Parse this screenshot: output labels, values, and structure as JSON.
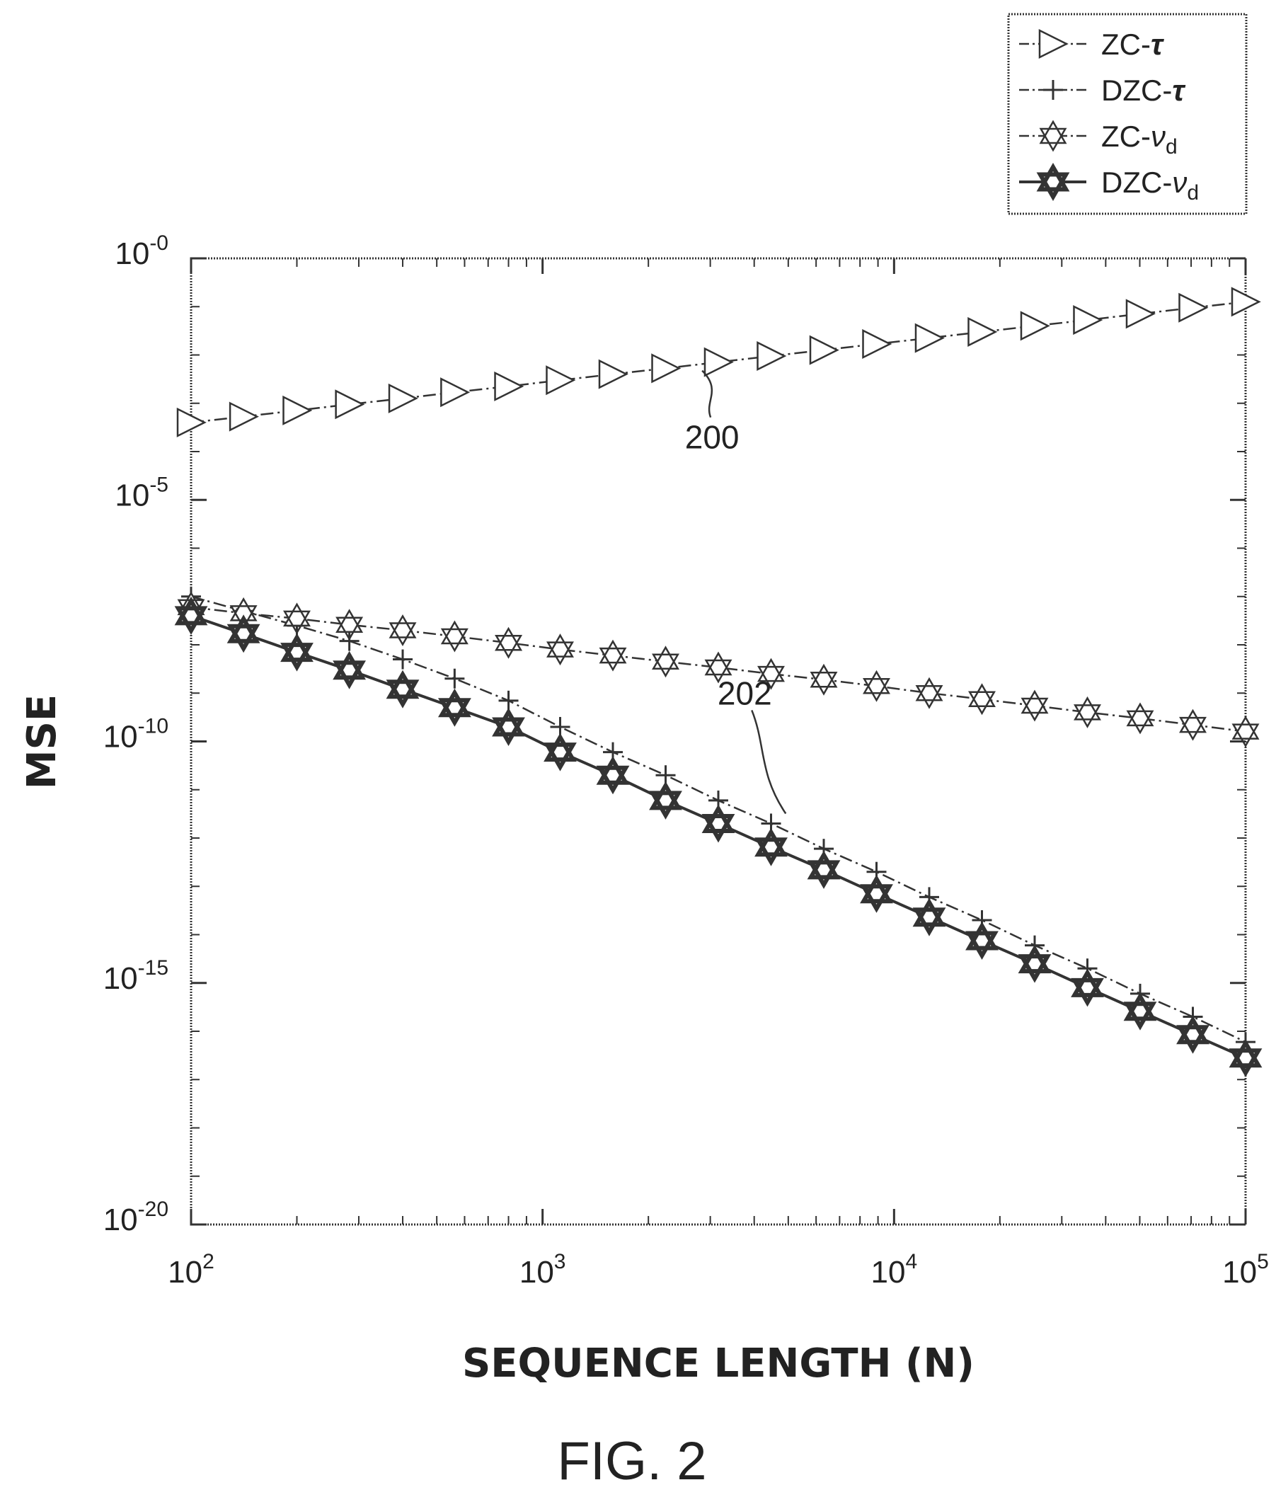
{
  "figure": {
    "caption": "FIG. 2"
  },
  "chart_data": {
    "type": "line",
    "xlabel": "SEQUENCE LENGTH (N)",
    "ylabel": "MSE",
    "xscale": "log",
    "yscale": "log",
    "xlim": [
      100,
      100000
    ],
    "ylim": [
      1e-20,
      1
    ],
    "x_ticks": [
      {
        "base": "10",
        "exp": "2"
      },
      {
        "base": "10",
        "exp": "3"
      },
      {
        "base": "10",
        "exp": "4"
      },
      {
        "base": "10",
        "exp": "5"
      }
    ],
    "y_ticks": [
      {
        "base": "10",
        "exp": "-0"
      },
      {
        "base": "10",
        "exp": "-5"
      },
      {
        "base": "10",
        "exp": "-10"
      },
      {
        "base": "10",
        "exp": "-15"
      },
      {
        "base": "10",
        "exp": "-20"
      }
    ],
    "grid": false,
    "legend_position": "top-right",
    "x": [
      100,
      141,
      200,
      282,
      400,
      562,
      800,
      1122,
      1585,
      2239,
      3162,
      4467,
      6310,
      8913,
      12589,
      17783,
      25119,
      35481,
      50119,
      70795,
      100000
    ],
    "series": [
      {
        "name": "ZC-τ",
        "marker": "triangle-right",
        "line": "dash-dot",
        "y": [
          0.0004,
          0.00053,
          0.00071,
          0.00095,
          0.00126,
          0.00169,
          0.00224,
          0.003,
          0.004,
          0.0053,
          0.0071,
          0.0095,
          0.0126,
          0.0169,
          0.0224,
          0.03,
          0.04,
          0.053,
          0.071,
          0.095,
          0.126
        ]
      },
      {
        "name": "DZC-τ",
        "marker": "plus",
        "line": "dash-dot",
        "y": [
          1e-07,
          5e-08,
          2.5e-08,
          1.2e-08,
          5e-09,
          2e-09,
          7e-10,
          2e-10,
          6e-11,
          2e-11,
          6e-12,
          2e-12,
          6e-13,
          2e-13,
          6e-14,
          2e-14,
          6e-15,
          2e-15,
          6e-16,
          2e-16,
          6e-17
        ]
      },
      {
        "name": "ZC-ν_d",
        "marker": "star6-open",
        "line": "dash-dot",
        "y": [
          6e-08,
          4.5e-08,
          3.5e-08,
          2.6e-08,
          2e-08,
          1.5e-08,
          1.1e-08,
          8e-09,
          6e-09,
          4.5e-09,
          3.4e-09,
          2.5e-09,
          1.9e-09,
          1.4e-09,
          1e-09,
          7.5e-10,
          5.5e-10,
          4e-10,
          3e-10,
          2.2e-10,
          1.6e-10
        ]
      },
      {
        "name": "DZC-ν_d",
        "marker": "star6-bold",
        "line": "solid",
        "y": [
          4e-08,
          1.7e-08,
          7e-09,
          3e-09,
          1.2e-09,
          5e-10,
          2e-10,
          6e-11,
          2e-11,
          6e-12,
          2e-12,
          6.5e-13,
          2.2e-13,
          7e-14,
          2.3e-14,
          7.5e-15,
          2.5e-15,
          8e-16,
          2.6e-16,
          8.5e-17,
          2.8e-17
        ]
      }
    ],
    "legend": [
      {
        "base": "ZC-",
        "sym": "τ",
        "sub": "",
        "marker": "triangle-right",
        "line": "dash-dot"
      },
      {
        "base": "DZC-",
        "sym": "τ",
        "sub": "",
        "marker": "plus",
        "line": "dash-dot"
      },
      {
        "base": "ZC-",
        "sym": "ν",
        "sub": "d",
        "marker": "star6-open",
        "line": "dash-dot"
      },
      {
        "base": "DZC-",
        "sym": "ν",
        "sub": "d",
        "marker": "star6-bold",
        "line": "solid"
      }
    ],
    "annotations": [
      {
        "text": "200",
        "series": "ZC-τ",
        "at_x": 2818
      },
      {
        "text": "202",
        "series": "DZC-τ",
        "at_x": 5200
      }
    ]
  }
}
